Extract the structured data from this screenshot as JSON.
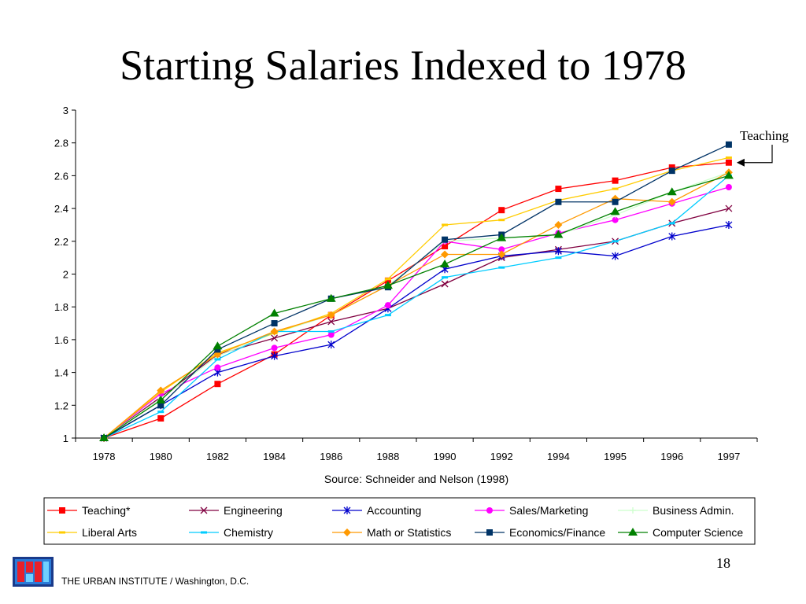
{
  "slide": {
    "title": "Starting Salaries Indexed to 1978",
    "page_number": "18",
    "footer": "THE URBAN INSTITUTE / Washington, D.C.",
    "logo_icon": "urban-institute-logo-icon"
  },
  "chart_data": {
    "type": "line",
    "title": "",
    "xlabel": "Source: Schneider and Nelson (1998)",
    "ylabel": "",
    "categories": [
      "1978",
      "1980",
      "1982",
      "1984",
      "1986",
      "1988",
      "1990",
      "1992",
      "1994",
      "1995",
      "1996",
      "1997"
    ],
    "ylim": [
      1,
      3
    ],
    "yticks": [
      "1",
      "1.2",
      "1.4",
      "1.6",
      "1.8",
      "2",
      "2.2",
      "2.4",
      "2.6",
      "2.8",
      "3"
    ],
    "grid": false,
    "legend_position": "bottom",
    "annotation": {
      "text": "Teaching",
      "points_to": "Teaching*"
    },
    "series": [
      {
        "name": "Teaching*",
        "color": "#ff0000",
        "marker": "square",
        "values": [
          1.0,
          1.12,
          1.33,
          1.51,
          1.75,
          1.96,
          2.17,
          2.39,
          2.52,
          2.57,
          2.65,
          2.68
        ]
      },
      {
        "name": "Engineering",
        "color": "#800040",
        "marker": "x",
        "values": [
          1.0,
          1.25,
          1.51,
          1.61,
          1.71,
          1.79,
          1.94,
          2.1,
          2.15,
          2.2,
          2.31,
          2.4
        ]
      },
      {
        "name": "Accounting",
        "color": "#0000cc",
        "marker": "star",
        "values": [
          1.0,
          1.2,
          1.4,
          1.5,
          1.57,
          1.79,
          2.03,
          2.11,
          2.14,
          2.11,
          2.23,
          2.3
        ]
      },
      {
        "name": "Sales/Marketing",
        "color": "#ff00ff",
        "marker": "circle",
        "values": [
          1.0,
          1.27,
          1.43,
          1.55,
          1.63,
          1.81,
          2.2,
          2.15,
          2.25,
          2.33,
          2.43,
          2.53
        ]
      },
      {
        "name": "Business Admin.",
        "color": "#ccffcc",
        "marker": "plus",
        "values": [
          1.0,
          1.24,
          1.5,
          1.64,
          1.75,
          1.93,
          2.2,
          2.22,
          2.24,
          2.36,
          2.5,
          2.62
        ]
      },
      {
        "name": "Liberal Arts",
        "color": "#ffcc00",
        "marker": "dash",
        "values": [
          1.0,
          1.28,
          1.52,
          1.64,
          1.76,
          1.97,
          2.3,
          2.33,
          2.45,
          2.52,
          2.63,
          2.71
        ]
      },
      {
        "name": "Chemistry",
        "color": "#00ccff",
        "marker": "dash",
        "values": [
          1.0,
          1.16,
          1.48,
          1.65,
          1.65,
          1.75,
          1.98,
          2.04,
          2.1,
          2.2,
          2.31,
          2.6
        ]
      },
      {
        "name": "Math or Statistics",
        "color": "#ff9900",
        "marker": "diamond",
        "values": [
          1.0,
          1.29,
          1.51,
          1.65,
          1.75,
          1.93,
          2.12,
          2.12,
          2.3,
          2.46,
          2.44,
          2.62
        ]
      },
      {
        "name": "Economics/Finance",
        "color": "#003366",
        "marker": "square",
        "values": [
          1.0,
          1.2,
          1.54,
          1.7,
          1.85,
          1.92,
          2.21,
          2.24,
          2.44,
          2.44,
          2.63,
          2.79
        ]
      },
      {
        "name": "Computer Science",
        "color": "#008000",
        "marker": "triangle",
        "values": [
          1.0,
          1.23,
          1.56,
          1.76,
          1.85,
          1.93,
          2.06,
          2.22,
          2.24,
          2.38,
          2.5,
          2.6
        ]
      }
    ]
  }
}
